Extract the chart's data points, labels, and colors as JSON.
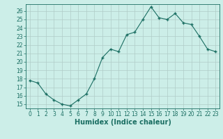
{
  "x": [
    0,
    1,
    2,
    3,
    4,
    5,
    6,
    7,
    8,
    9,
    10,
    11,
    12,
    13,
    14,
    15,
    16,
    17,
    18,
    19,
    20,
    21,
    22,
    23
  ],
  "y": [
    17.8,
    17.5,
    16.2,
    15.5,
    15.0,
    14.8,
    15.5,
    16.2,
    18.0,
    20.5,
    21.5,
    21.2,
    23.2,
    23.5,
    25.0,
    26.5,
    25.2,
    25.0,
    25.7,
    24.6,
    24.4,
    23.0,
    21.5,
    21.2
  ],
  "xlabel": "Humidex (Indice chaleur)",
  "xlim": [
    -0.5,
    23.5
  ],
  "ylim": [
    14.5,
    26.8
  ],
  "yticks": [
    15,
    16,
    17,
    18,
    19,
    20,
    21,
    22,
    23,
    24,
    25,
    26
  ],
  "xticks": [
    0,
    1,
    2,
    3,
    4,
    5,
    6,
    7,
    8,
    9,
    10,
    11,
    12,
    13,
    14,
    15,
    16,
    17,
    18,
    19,
    20,
    21,
    22,
    23
  ],
  "line_color": "#1a6e62",
  "marker_color": "#1a6e62",
  "bg_color": "#cceee8",
  "grid_color": "#b0ccc8",
  "tick_label_fontsize": 5.5,
  "xlabel_fontsize": 7.0
}
